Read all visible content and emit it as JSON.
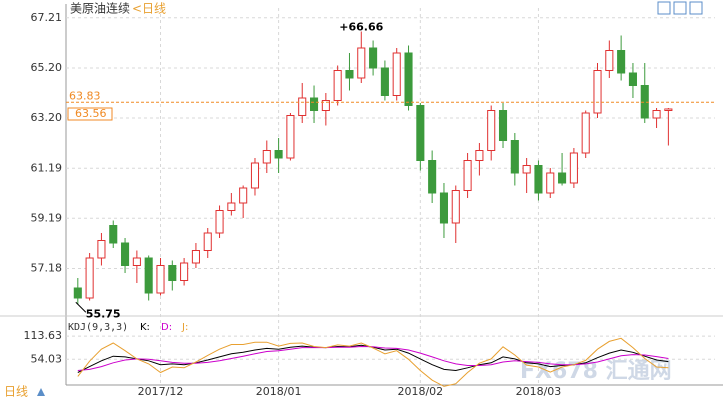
{
  "chart_data": [
    {
      "type": "candlestick",
      "title": "美原油连续",
      "subtitle": "<日线",
      "x": [
        0,
        1,
        2,
        3,
        4,
        5,
        6,
        7,
        8,
        9,
        10,
        11,
        12,
        13,
        14,
        15,
        16,
        17,
        18,
        19,
        20,
        21,
        22,
        23,
        24,
        25,
        26,
        27,
        28,
        29,
        30,
        31,
        32,
        33,
        34,
        35,
        36,
        37,
        38,
        39,
        40,
        41,
        42,
        43,
        44,
        45,
        46,
        47,
        48,
        49,
        50
      ],
      "open": [
        56.4,
        56.0,
        57.6,
        58.9,
        58.2,
        57.3,
        57.6,
        56.2,
        57.3,
        56.7,
        57.4,
        57.9,
        58.6,
        59.5,
        59.8,
        60.4,
        61.4,
        61.9,
        61.6,
        63.3,
        64.0,
        63.5,
        63.9,
        65.1,
        64.8,
        66.0,
        65.2,
        64.1,
        65.8,
        63.7,
        61.5,
        60.2,
        59.0,
        60.3,
        61.5,
        61.9,
        63.5,
        62.3,
        61.0,
        61.3,
        60.2,
        61.0,
        60.6,
        61.8,
        63.4,
        65.1,
        65.9,
        65.0,
        64.5,
        63.2,
        63.5
      ],
      "high": [
        56.8,
        57.8,
        58.6,
        59.1,
        58.4,
        57.9,
        57.7,
        57.6,
        57.5,
        57.6,
        58.2,
        58.8,
        59.7,
        60.2,
        60.5,
        61.6,
        62.3,
        62.4,
        63.4,
        64.6,
        64.5,
        64.2,
        65.3,
        65.8,
        66.66,
        66.3,
        65.5,
        66.0,
        66.1,
        63.8,
        61.9,
        60.6,
        60.5,
        61.8,
        62.2,
        63.7,
        63.8,
        62.6,
        61.6,
        61.5,
        61.2,
        61.8,
        62.0,
        63.5,
        65.4,
        66.3,
        66.5,
        65.4,
        65.4,
        63.6,
        63.6
      ],
      "low": [
        55.75,
        55.9,
        57.3,
        58.0,
        57.0,
        56.6,
        55.9,
        56.1,
        56.3,
        56.5,
        57.2,
        57.6,
        58.4,
        59.3,
        59.2,
        60.1,
        61.0,
        61.0,
        61.5,
        63.0,
        63.0,
        62.9,
        63.7,
        64.3,
        64.6,
        64.9,
        63.9,
        63.9,
        63.5,
        61.1,
        59.8,
        58.4,
        58.2,
        60.0,
        60.9,
        61.5,
        62.0,
        60.5,
        60.2,
        59.9,
        60.0,
        60.5,
        60.4,
        61.6,
        63.2,
        64.8,
        64.7,
        64.0,
        63.0,
        62.8,
        62.1
      ],
      "close": [
        56.0,
        57.6,
        58.3,
        58.2,
        57.3,
        57.6,
        56.2,
        57.3,
        56.7,
        57.4,
        57.9,
        58.6,
        59.5,
        59.8,
        60.4,
        61.4,
        61.9,
        61.6,
        63.3,
        64.0,
        63.5,
        63.9,
        65.1,
        64.8,
        66.0,
        65.2,
        64.1,
        65.8,
        63.7,
        61.5,
        60.2,
        59.0,
        60.3,
        61.5,
        61.9,
        63.5,
        62.3,
        61.0,
        61.3,
        60.2,
        61.0,
        60.6,
        61.8,
        63.4,
        65.1,
        65.9,
        65.0,
        64.5,
        63.2,
        63.5,
        63.56
      ],
      "up_color": "#e03030",
      "down_color": "#3c9a3c",
      "xlim": [
        -1,
        52
      ],
      "xticks": [
        {
          "value": 7,
          "label": "2017/12"
        },
        {
          "value": 17,
          "label": "2018/01"
        },
        {
          "value": 29,
          "label": "2018/02"
        },
        {
          "value": 39,
          "label": "2018/03"
        }
      ],
      "ylim": [
        55.4,
        67.6
      ],
      "yticks": [
        57.18,
        59.19,
        61.19,
        63.2,
        65.2,
        67.21
      ],
      "ytick_labels": [
        {
          "value": 57.18,
          "label": "57.18"
        },
        {
          "value": 59.19,
          "label": "59.19"
        },
        {
          "value": 61.19,
          "label": "61.19"
        },
        {
          "value": 63.2,
          "label": "63.20"
        },
        {
          "value": 65.2,
          "label": "65.20"
        },
        {
          "value": 67.21,
          "label": "67.21"
        }
      ],
      "max_label": "+66.66",
      "min_label": "55.75",
      "current_price": {
        "value": 63.83,
        "label": "63.83"
      },
      "last_close_label": "63.56",
      "grid": true
    },
    {
      "type": "line",
      "indicator": "KDJ(9,3,3)",
      "x": [
        0,
        1,
        2,
        3,
        4,
        5,
        6,
        7,
        8,
        9,
        10,
        11,
        12,
        13,
        14,
        15,
        16,
        17,
        18,
        19,
        20,
        21,
        22,
        23,
        24,
        25,
        26,
        27,
        28,
        29,
        30,
        31,
        32,
        33,
        34,
        35,
        36,
        37,
        38,
        39,
        40,
        41,
        42,
        43,
        44,
        45,
        46,
        47,
        48,
        49,
        50
      ],
      "xlim": [
        -1,
        52
      ],
      "series": [
        {
          "name": "K:",
          "color": "#000000",
          "values": [
            20,
            35,
            50,
            62,
            60,
            55,
            50,
            40,
            42,
            40,
            45,
            52,
            60,
            68,
            72,
            78,
            82,
            80,
            85,
            88,
            85,
            84,
            87,
            86,
            90,
            85,
            78,
            80,
            70,
            55,
            40,
            28,
            25,
            32,
            40,
            45,
            60,
            55,
            45,
            42,
            35,
            38,
            40,
            45,
            58,
            70,
            78,
            72,
            62,
            52,
            48
          ]
        },
        {
          "name": "D:",
          "color": "#cc00cc",
          "values": [
            25,
            28,
            35,
            45,
            52,
            55,
            54,
            50,
            46,
            44,
            44,
            46,
            50,
            56,
            62,
            68,
            74,
            76,
            80,
            84,
            84,
            84,
            85,
            85,
            87,
            86,
            83,
            82,
            78,
            70,
            60,
            50,
            42,
            38,
            38,
            40,
            47,
            50,
            48,
            46,
            42,
            40,
            40,
            42,
            47,
            55,
            63,
            66,
            65,
            61,
            56
          ]
        },
        {
          "name": "J:",
          "color": "#e8a030",
          "values": [
            10,
            49,
            80,
            96,
            76,
            55,
            42,
            20,
            34,
            32,
            47,
            64,
            80,
            92,
            92,
            98,
            98,
            88,
            95,
            96,
            87,
            84,
            91,
            88,
            96,
            83,
            68,
            76,
            54,
            25,
            0,
            -16,
            -9,
            20,
            44,
            55,
            86,
            65,
            39,
            34,
            21,
            34,
            40,
            51,
            80,
            100,
            108,
            84,
            56,
            34,
            32
          ]
        }
      ],
      "ylim": [
        -20,
        150
      ],
      "yticks": [
        {
          "value": 54.03,
          "label": "54.03"
        },
        {
          "value": 113.63,
          "label": "113.63"
        }
      ],
      "grid": true
    }
  ],
  "ui": {
    "period_button": "日线",
    "watermark": "FX678 汇通网"
  }
}
